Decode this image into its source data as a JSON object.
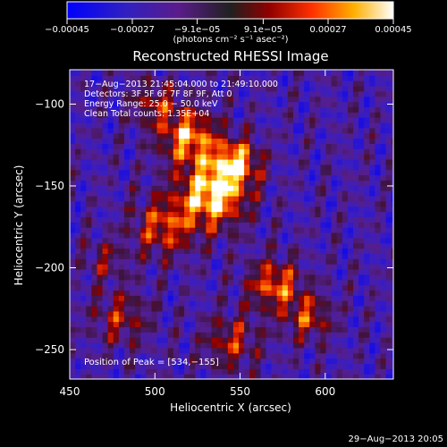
{
  "colorbar": {
    "tick_labels": [
      "−0.00045",
      "−0.00027",
      "−9.1e−05",
      "9.1e−05",
      "0.00027",
      "0.00045"
    ],
    "tick_values": [
      -0.00045,
      -0.00027,
      -9.1e-05,
      9.1e-05,
      0.00027,
      0.00045
    ],
    "range": [
      -0.00045,
      0.00045
    ],
    "units_label": "(photons cm⁻² s⁻¹ asec⁻²)"
  },
  "footer_timestamp": "29−Aug−2013 20:05",
  "chart_data": {
    "type": "heatmap",
    "title": "Reconstructed RHESSI Image",
    "xlabel": "Heliocentric X (arcsec)",
    "ylabel": "Heliocentric Y (arcsec)",
    "xlim": [
      450,
      640
    ],
    "ylim": [
      -268,
      -79
    ],
    "x_ticks": [
      450,
      500,
      550,
      600
    ],
    "x_tick_labels": [
      "450",
      "500",
      "550",
      "600"
    ],
    "y_ticks": [
      -100,
      -150,
      -200,
      -250
    ],
    "y_tick_labels": [
      "−100",
      "−150",
      "−200",
      "−250"
    ],
    "annotations": [
      "17−Aug−2013 21:45:04.000 to 21:49:10.000",
      "Detectors: 3F 5F 6F 7F 8F 9F, Att 0",
      "Energy Range: 25.0 − 50.0 keV",
      "Clean     Total counts: 1.35E+04"
    ],
    "peak_label": "Position of Peak = [534,−155]",
    "peak": [
      534,
      -155
    ],
    "emission_sources": [
      {
        "x": 534,
        "y": -155,
        "intensity": 1.0,
        "sigma": 14
      },
      {
        "x": 520,
        "y": -120,
        "intensity": 0.8,
        "sigma": 12
      },
      {
        "x": 548,
        "y": -135,
        "intensity": 0.75,
        "sigma": 10
      },
      {
        "x": 505,
        "y": -175,
        "intensity": 0.6,
        "sigma": 13
      },
      {
        "x": 570,
        "y": -210,
        "intensity": 0.7,
        "sigma": 11
      },
      {
        "x": 590,
        "y": -230,
        "intensity": 0.55,
        "sigma": 10
      },
      {
        "x": 480,
        "y": -230,
        "intensity": 0.45,
        "sigma": 12
      },
      {
        "x": 545,
        "y": -245,
        "intensity": 0.5,
        "sigma": 12
      },
      {
        "x": 500,
        "y": -100,
        "intensity": 0.45,
        "sigma": 10
      },
      {
        "x": 470,
        "y": -195,
        "intensity": 0.35,
        "sigma": 9
      }
    ]
  }
}
